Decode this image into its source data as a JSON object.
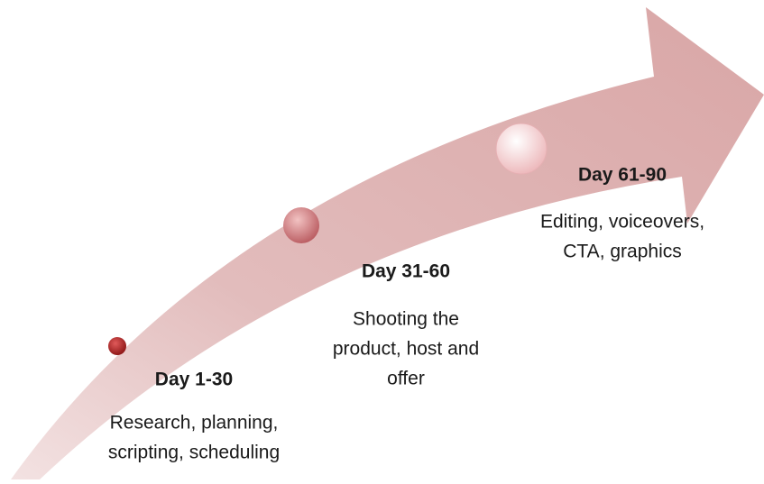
{
  "steps": [
    {
      "title": "Day 1-30",
      "lines": [
        "Research, planning,",
        "scripting, scheduling"
      ]
    },
    {
      "title": "Day 31-60",
      "lines": [
        "Shooting the",
        "product, host and",
        "offer"
      ]
    },
    {
      "title": "Day 61-90",
      "lines": [
        "Editing, voiceovers,",
        "CTA, graphics"
      ]
    }
  ]
}
